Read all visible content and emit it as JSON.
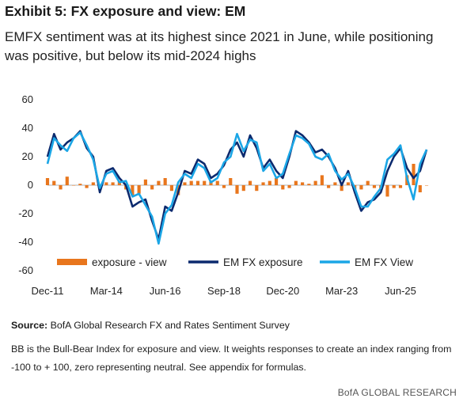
{
  "header": {
    "title": "Exhibit 5: FX exposure and view: EM",
    "subtitle": "EMFX sentiment was at its highest since 2021 in June, while positioning was positive, but below its mid-2024 highs"
  },
  "footer": {
    "source_label": "Source:",
    "source_text": " BofA Global Research FX and Rates Sentiment Survey",
    "note": "BB is the Bull-Bear Index for exposure and view. It weights responses to create an index ranging from -100 to + 100, zero representing neutral. See appendix for formulas.",
    "brand": "BofA GLOBAL RESEARCH"
  },
  "colors": {
    "bars": "#e8761d",
    "exposure": "#0c2a6e",
    "view": "#1ba6e6"
  },
  "chart_data": {
    "type": "line",
    "ylim": [
      -60,
      60
    ],
    "yticks": [
      60,
      40,
      20,
      0,
      -20,
      -40,
      -60
    ],
    "xlim": [
      "2011-12",
      "2025-06"
    ],
    "xticks": [
      "Dec-11",
      "Mar-14",
      "Jun-16",
      "Sep-18",
      "Dec-20",
      "Mar-23",
      "Jun-25"
    ],
    "legend": [
      "exposure - view",
      "EM FX exposure",
      "EM FX View"
    ],
    "legend_position": "bottom",
    "sample_interval_months": 3,
    "series": [
      {
        "name": "EM FX exposure",
        "type": "line",
        "values": [
          20,
          36,
          25,
          30,
          33,
          38,
          26,
          20,
          -5,
          10,
          12,
          5,
          0,
          -15,
          -12,
          -10,
          -25,
          -38,
          -15,
          -18,
          -5,
          10,
          8,
          18,
          15,
          5,
          8,
          14,
          25,
          30,
          20,
          35,
          26,
          12,
          18,
          10,
          5,
          20,
          38,
          35,
          30,
          23,
          25,
          20,
          12,
          0,
          10,
          -5,
          -18,
          -12,
          -10,
          -5,
          10,
          20,
          26,
          12,
          5,
          10,
          25
        ]
      },
      {
        "name": "EM FX View",
        "type": "line",
        "values": [
          15,
          33,
          28,
          24,
          33,
          37,
          28,
          18,
          -2,
          8,
          10,
          2,
          3,
          -8,
          -6,
          -14,
          -22,
          -41,
          -20,
          -14,
          2,
          8,
          5,
          15,
          12,
          2,
          5,
          16,
          20,
          36,
          24,
          32,
          30,
          10,
          15,
          5,
          8,
          22,
          35,
          33,
          29,
          20,
          18,
          22,
          10,
          4,
          8,
          -2,
          -15,
          -15,
          -8,
          -2,
          18,
          22,
          28,
          5,
          -10,
          15,
          25
        ]
      },
      {
        "name": "exposure - view",
        "type": "bar",
        "values": [
          5,
          3,
          -3,
          6,
          0,
          1,
          -2,
          2,
          -3,
          2,
          2,
          3,
          -3,
          -7,
          -6,
          4,
          -3,
          3,
          5,
          -4,
          -7,
          2,
          3,
          3,
          3,
          3,
          3,
          -2,
          5,
          -6,
          -4,
          3,
          -4,
          2,
          3,
          5,
          -3,
          -2,
          3,
          2,
          1,
          3,
          7,
          -2,
          2,
          -4,
          2,
          -3,
          -3,
          3,
          -2,
          -3,
          -8,
          -2,
          -2,
          7,
          15,
          -5,
          0
        ]
      }
    ]
  }
}
